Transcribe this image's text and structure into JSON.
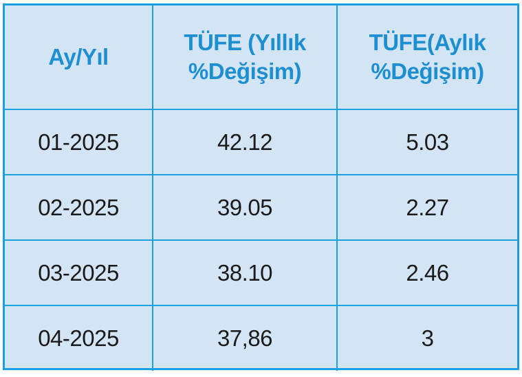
{
  "table": {
    "headers": [
      {
        "lines": [
          "Ay/Yıl"
        ]
      },
      {
        "lines": [
          "TÜFE (Yıllık",
          "%Değişim)"
        ]
      },
      {
        "lines": [
          "TÜFE(Aylık",
          "%Değişim)"
        ]
      }
    ],
    "rows": [
      [
        "01-2025",
        "42.12",
        "5.03"
      ],
      [
        "02-2025",
        "39.05",
        "2.27"
      ],
      [
        "03-2025",
        "38.10",
        "2.46"
      ],
      [
        "04-2025",
        "37,86",
        "3"
      ]
    ]
  },
  "colors": {
    "background": "#d3e5f5",
    "border": "#1aa0de",
    "header_text": "#1d8fd0",
    "body_text": "#1a1a1a"
  }
}
